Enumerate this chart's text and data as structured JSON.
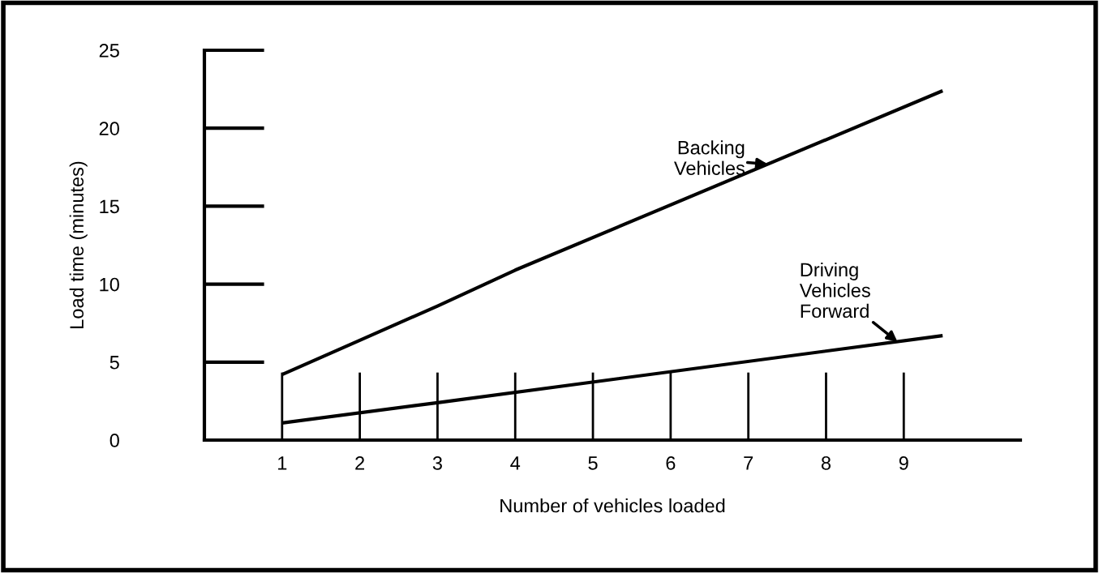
{
  "chart_data": {
    "type": "line",
    "xlabel": "Number of vehicles loaded",
    "ylabel": "Load time (minutes)",
    "xlim": [
      0,
      10.5
    ],
    "ylim": [
      0,
      25
    ],
    "xticks": [
      1,
      2,
      3,
      4,
      5,
      6,
      7,
      8,
      9
    ],
    "yticks": [
      0,
      5,
      10,
      15,
      20,
      25
    ],
    "grid": false,
    "legend": false,
    "marker": "none",
    "line_style": "solid",
    "series": [
      {
        "color": "#000000",
        "x": [
          1,
          2,
          3,
          4,
          9.5
        ],
        "values": [
          4.2,
          6.4,
          8.6,
          10.9,
          22.4
        ]
      },
      {
        "color": "#000000",
        "x": [
          1,
          3,
          9.5
        ],
        "values": [
          1.1,
          2.4,
          6.7
        ]
      }
    ],
    "annotations": [
      {
        "text": "Backing\nVehicles",
        "x": 7.25,
        "y": 17.7
      },
      {
        "text": "Driving\nVehicles\nForward",
        "x": 8.92,
        "y": 6.3
      }
    ]
  }
}
